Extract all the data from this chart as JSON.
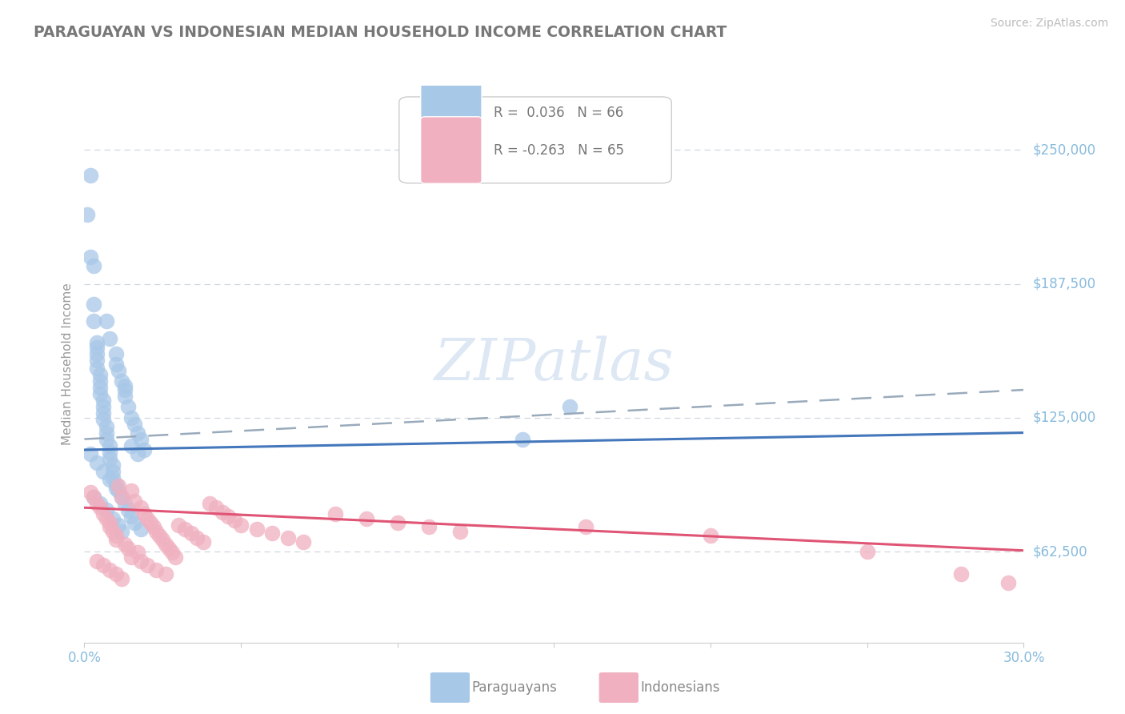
{
  "title": "PARAGUAYAN VS INDONESIAN MEDIAN HOUSEHOLD INCOME CORRELATION CHART",
  "source": "Source: ZipAtlas.com",
  "ylabel": "Median Household Income",
  "legend_paraguayans": "Paraguayans",
  "legend_indonesians": "Indonesians",
  "r_paraguayan": 0.036,
  "n_paraguayan": 66,
  "r_indonesian": -0.263,
  "n_indonesian": 65,
  "xlim": [
    0.0,
    0.3
  ],
  "ylim": [
    20000,
    280000
  ],
  "yticks": [
    62500,
    125000,
    187500,
    250000
  ],
  "ytick_labels": [
    "$62,500",
    "$125,000",
    "$187,500",
    "$250,000"
  ],
  "background_color": "#ffffff",
  "plot_bg_color": "#ffffff",
  "grid_color": "#d0d8e0",
  "blue_scatter_color": "#a8c8e8",
  "pink_scatter_color": "#f0b0c0",
  "blue_line_color": "#4477bb",
  "pink_line_color": "#e05575",
  "gray_dash_color": "#99aabb",
  "axis_label_color": "#999999",
  "tick_label_color": "#88bbdd",
  "watermark_color": "#dde8f4",
  "paraguayan_x": [
    0.001,
    0.002,
    0.002,
    0.003,
    0.003,
    0.003,
    0.004,
    0.004,
    0.004,
    0.004,
    0.004,
    0.005,
    0.005,
    0.005,
    0.005,
    0.006,
    0.006,
    0.006,
    0.006,
    0.007,
    0.007,
    0.007,
    0.007,
    0.008,
    0.008,
    0.008,
    0.008,
    0.009,
    0.009,
    0.009,
    0.01,
    0.01,
    0.01,
    0.011,
    0.011,
    0.012,
    0.012,
    0.013,
    0.013,
    0.013,
    0.014,
    0.014,
    0.015,
    0.015,
    0.016,
    0.016,
    0.017,
    0.018,
    0.018,
    0.019,
    0.002,
    0.004,
    0.006,
    0.008,
    0.01,
    0.013,
    0.015,
    0.017,
    0.14,
    0.155,
    0.003,
    0.005,
    0.007,
    0.009,
    0.011,
    0.012
  ],
  "paraguayan_y": [
    220000,
    200000,
    238000,
    170000,
    178000,
    196000,
    160000,
    158000,
    155000,
    152000,
    148000,
    145000,
    142000,
    139000,
    136000,
    133000,
    130000,
    127000,
    124000,
    121000,
    118000,
    115000,
    170000,
    112000,
    109000,
    106000,
    162000,
    103000,
    100000,
    97000,
    155000,
    150000,
    94000,
    147000,
    91000,
    142000,
    88000,
    138000,
    85000,
    135000,
    82000,
    130000,
    125000,
    79000,
    122000,
    76000,
    118000,
    115000,
    73000,
    110000,
    108000,
    104000,
    100000,
    96000,
    92000,
    140000,
    112000,
    108000,
    115000,
    130000,
    88000,
    85000,
    82000,
    78000,
    75000,
    72000
  ],
  "indonesian_x": [
    0.002,
    0.003,
    0.004,
    0.005,
    0.006,
    0.007,
    0.008,
    0.008,
    0.009,
    0.01,
    0.01,
    0.011,
    0.012,
    0.013,
    0.014,
    0.015,
    0.016,
    0.017,
    0.018,
    0.019,
    0.02,
    0.021,
    0.022,
    0.023,
    0.024,
    0.025,
    0.026,
    0.027,
    0.028,
    0.029,
    0.03,
    0.032,
    0.034,
    0.036,
    0.038,
    0.04,
    0.042,
    0.044,
    0.046,
    0.048,
    0.05,
    0.055,
    0.06,
    0.065,
    0.07,
    0.08,
    0.09,
    0.1,
    0.11,
    0.12,
    0.004,
    0.006,
    0.008,
    0.01,
    0.012,
    0.015,
    0.018,
    0.02,
    0.023,
    0.026,
    0.16,
    0.2,
    0.25,
    0.28,
    0.295
  ],
  "indonesian_y": [
    90000,
    88000,
    85000,
    83000,
    80000,
    78000,
    76000,
    74000,
    72000,
    70000,
    68000,
    93000,
    88000,
    66000,
    64000,
    91000,
    86000,
    62000,
    83000,
    80000,
    78000,
    76000,
    74000,
    72000,
    70000,
    68000,
    66000,
    64000,
    62000,
    60000,
    75000,
    73000,
    71000,
    69000,
    67000,
    85000,
    83000,
    81000,
    79000,
    77000,
    75000,
    73000,
    71000,
    69000,
    67000,
    80000,
    78000,
    76000,
    74000,
    72000,
    58000,
    56000,
    54000,
    52000,
    50000,
    60000,
    58000,
    56000,
    54000,
    52000,
    74000,
    70000,
    62500,
    52000,
    48000
  ],
  "blue_trend_x0": 0.0,
  "blue_trend_y0": 110000,
  "blue_trend_x1": 0.3,
  "blue_trend_y1": 118000,
  "gray_trend_x0": 0.0,
  "gray_trend_y0": 115000,
  "gray_trend_x1": 0.3,
  "gray_trend_y1": 138000,
  "pink_trend_x0": 0.0,
  "pink_trend_y0": 83000,
  "pink_trend_x1": 0.3,
  "pink_trend_y1": 63000
}
